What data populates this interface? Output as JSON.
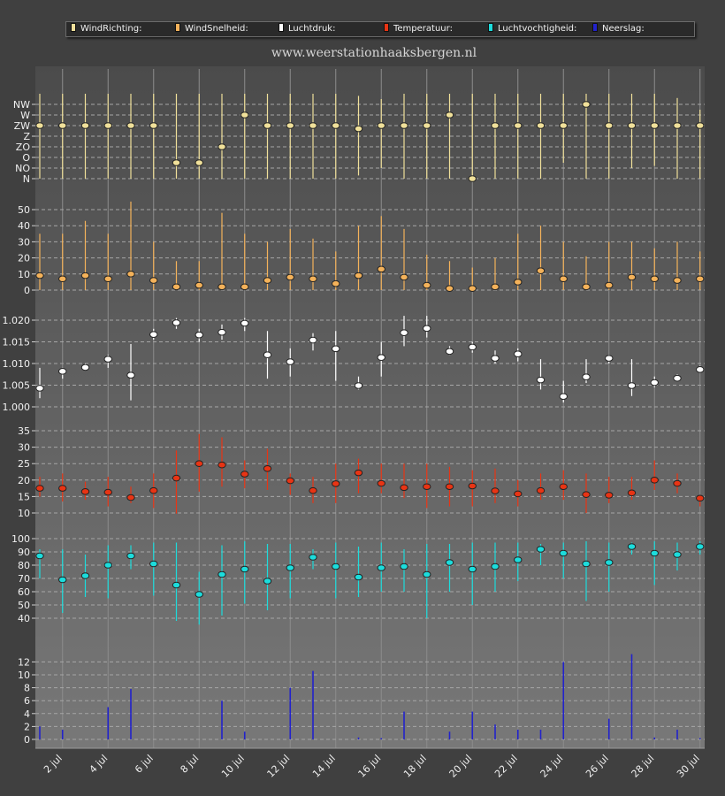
{
  "site_title": "www.weerstationhaaksbergen.nl",
  "legend": [
    {
      "label": "WindRichting:",
      "color": "#f0e09a"
    },
    {
      "label": "WindSnelheid:",
      "color": "#f4b25a"
    },
    {
      "label": "Luchtdruk:",
      "color": "#ffffff"
    },
    {
      "label": "Temperatuur:",
      "color": "#e83414"
    },
    {
      "label": "Luchtvochtigheid:",
      "color": "#1cdcdc"
    },
    {
      "label": "Neerslag:",
      "color": "#2222cc"
    }
  ],
  "chart_data": {
    "type": "line",
    "x": [
      1,
      2,
      3,
      4,
      5,
      6,
      7,
      8,
      9,
      10,
      11,
      12,
      13,
      14,
      15,
      16,
      17,
      18,
      19,
      20,
      21,
      22,
      23,
      24,
      25,
      26,
      27,
      28,
      29,
      30
    ],
    "x_tick_labels": [
      "2 jul",
      "4 jul",
      "6 jul",
      "8 jul",
      "10 jul",
      "12 jul",
      "14 jul",
      "16 jul",
      "18 jul",
      "20 jul",
      "22 jul",
      "24 jul",
      "26 jul",
      "28 jul",
      "30 jul"
    ],
    "x_tick_days": [
      2,
      4,
      6,
      8,
      10,
      12,
      14,
      16,
      18,
      20,
      22,
      24,
      26,
      28,
      30
    ],
    "panels": [
      {
        "name": "WindRichting",
        "color": "#f0e09a",
        "y_tick_labels": [
          "N",
          "NO",
          "O",
          "ZO",
          "Z",
          "ZW",
          "W",
          "NW"
        ],
        "values": [
          5,
          5,
          5,
          5,
          5,
          5,
          1.5,
          1.5,
          3,
          6,
          5,
          5,
          5,
          5,
          4.7,
          5,
          5,
          5,
          6,
          0,
          5,
          5,
          5,
          5,
          7,
          5,
          5,
          5,
          5,
          5
        ],
        "low": [
          0,
          0,
          0,
          0,
          0,
          0,
          0,
          0,
          0,
          0,
          0,
          0,
          0,
          0,
          0.3,
          1,
          0,
          0,
          0,
          0,
          0,
          0,
          0,
          1.5,
          0,
          0,
          1,
          1.2,
          0,
          0
        ],
        "high": [
          8,
          8,
          8,
          8,
          8,
          8,
          8,
          8,
          8,
          8,
          8,
          8,
          8,
          8,
          7.8,
          7.5,
          8,
          8,
          8,
          8,
          8,
          8,
          8,
          8,
          8,
          8,
          8,
          8,
          7.6,
          6.5
        ]
      },
      {
        "name": "WindSnelheid",
        "color": "#f4b25a",
        "y_tick_labels": [
          "0",
          "10",
          "20",
          "30",
          "40",
          "50"
        ],
        "values": [
          9,
          7,
          9,
          7,
          10,
          6,
          2,
          3,
          2,
          2,
          6,
          8,
          7,
          4,
          9,
          13,
          8,
          3,
          1,
          1,
          2,
          5,
          12,
          7,
          2,
          3,
          8,
          7,
          6,
          7
        ],
        "low": [
          0,
          0,
          0,
          0,
          0,
          0,
          0,
          0,
          0,
          0,
          0,
          0,
          0,
          0,
          0,
          0,
          0,
          0,
          0,
          0,
          0,
          0,
          0,
          0,
          0,
          0,
          0,
          0,
          0,
          0
        ],
        "high": [
          35,
          35,
          43,
          35,
          55,
          30,
          18,
          18,
          48,
          35,
          30,
          38,
          32,
          24,
          40,
          46,
          38,
          22,
          18,
          14,
          20,
          35,
          40,
          30,
          21,
          30,
          30,
          26,
          30,
          24
        ]
      },
      {
        "name": "Luchtdruk",
        "color": "#ffffff",
        "y_tick_labels": [
          "1.000",
          "1.005",
          "1.010",
          "1.015",
          "1.020"
        ],
        "values": [
          1004.3,
          1008.2,
          1009.1,
          1011,
          1007.3,
          1016.7,
          1019.4,
          1016.6,
          1017.2,
          1019.3,
          1012,
          1010.4,
          1015.4,
          1013.4,
          1004.9,
          1011.4,
          1017.1,
          1018.1,
          1012.8,
          1013.8,
          1011.2,
          1012.2,
          1006.2,
          1002.4,
          1006.9,
          1011.2,
          1004.9,
          1005.6,
          1006.6,
          1008.6
        ],
        "low": [
          1002,
          1006.5,
          1008.5,
          1009,
          1001.5,
          1015.5,
          1018,
          1015,
          1015.5,
          1017.5,
          1006.5,
          1007,
          1013,
          1006,
          1004,
          1007,
          1014,
          1016,
          1012,
          1012.5,
          1010,
          1010.5,
          1004,
          1001,
          1005.5,
          1010,
          1002.5,
          1004.5,
          1006,
          1008
        ],
        "high": [
          1009,
          1009,
          1010,
          1012,
          1014.5,
          1018,
          1020.5,
          1018,
          1019,
          1020.5,
          1017.5,
          1013.5,
          1017,
          1017.5,
          1007,
          1015,
          1021,
          1021,
          1014,
          1015,
          1013,
          1013.5,
          1011,
          1006,
          1011,
          1012,
          1011,
          1007,
          1007.5,
          1009.5
        ]
      },
      {
        "name": "Temperatuur",
        "color": "#e83414",
        "y_tick_labels": [
          "10",
          "15",
          "20",
          "25",
          "30",
          "35"
        ],
        "values": [
          17.5,
          17.5,
          16.5,
          16.3,
          14.7,
          16.8,
          20.6,
          25,
          24.6,
          21.8,
          23.5,
          19.8,
          16.8,
          18.9,
          22.2,
          19,
          17.7,
          18,
          18,
          18.2,
          16.7,
          15.8,
          16.8,
          18,
          15.6,
          15.4,
          16.1,
          20,
          19,
          14.5
        ],
        "low": [
          15,
          13.5,
          14,
          12,
          13,
          11.5,
          9.8,
          16.5,
          18,
          17.5,
          17,
          15.5,
          13,
          13,
          16,
          16,
          14.5,
          11.5,
          12,
          12,
          13,
          12,
          14,
          14,
          10,
          13,
          14,
          17,
          16,
          12
        ],
        "high": [
          21,
          22,
          19.5,
          21,
          18,
          22,
          29,
          34,
          33,
          26,
          29.5,
          22,
          21,
          25,
          26.5,
          25,
          25,
          25,
          24,
          23,
          23.5,
          20,
          22,
          23,
          22,
          21,
          21,
          26,
          22,
          15.5
        ]
      },
      {
        "name": "Luchtvochtigheid",
        "color": "#1cdcdc",
        "y_tick_labels": [
          "40",
          "50",
          "60",
          "70",
          "80",
          "90",
          "100"
        ],
        "values": [
          87,
          69,
          72,
          80,
          87,
          81,
          65,
          58,
          73,
          77,
          68,
          78,
          86,
          79,
          71,
          78,
          79,
          73,
          82,
          77,
          79,
          84,
          92,
          89,
          81,
          82,
          94,
          89,
          88,
          94
        ],
        "low": [
          70,
          44,
          56,
          55,
          77,
          57,
          38,
          33,
          42,
          51,
          46,
          55,
          77,
          55,
          56,
          60,
          60,
          40,
          60,
          50,
          60,
          68,
          80,
          70,
          53,
          60,
          88,
          65,
          76,
          88
        ],
        "high": [
          92,
          92,
          88,
          95,
          95,
          97,
          97,
          75,
          95,
          98,
          96,
          96,
          92,
          97,
          94,
          97,
          92,
          96,
          96,
          97,
          97,
          97,
          96,
          97,
          98,
          97,
          97,
          98,
          97,
          98
        ]
      },
      {
        "name": "Neerslag",
        "color": "#2222cc",
        "y_tick_labels": [
          "0",
          "2",
          "4",
          "6",
          "8",
          "10",
          "12"
        ],
        "values": [
          2,
          1.5,
          0,
          5,
          7.8,
          0,
          0,
          0,
          6,
          1.2,
          0,
          8,
          10.6,
          0,
          0.3,
          0.2,
          4.3,
          0,
          1.2,
          4.3,
          2.3,
          1.5,
          1.5,
          12,
          0,
          3.2,
          13.2,
          0.3,
          1.5,
          0.2
        ]
      }
    ]
  }
}
